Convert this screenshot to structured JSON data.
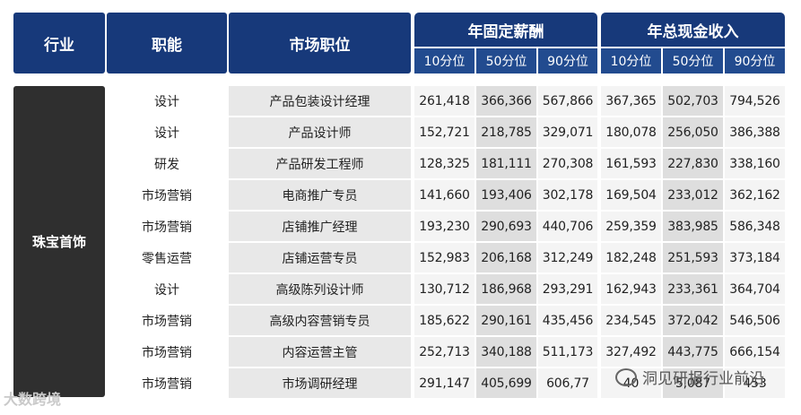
{
  "header": {
    "industry": "行业",
    "function": "职能",
    "position": "市场职位",
    "fixed_salary": "年固定薪酬",
    "total_cash": "年总现金收入",
    "p10": "10分位",
    "p50": "50分位",
    "p90": "90分位"
  },
  "industry": "珠宝首饰",
  "rows": [
    {
      "func": "设计",
      "pos": "产品包装设计经理",
      "f10": "261,418",
      "f50": "366,366",
      "f90": "567,866",
      "t10": "367,365",
      "t50": "502,703",
      "t90": "794,526"
    },
    {
      "func": "设计",
      "pos": "产品设计师",
      "f10": "152,721",
      "f50": "218,785",
      "f90": "329,071",
      "t10": "180,078",
      "t50": "256,050",
      "t90": "386,388"
    },
    {
      "func": "研发",
      "pos": "产品研发工程师",
      "f10": "128,325",
      "f50": "181,111",
      "f90": "270,308",
      "t10": "161,593",
      "t50": "227,830",
      "t90": "338,160"
    },
    {
      "func": "市场营销",
      "pos": "电商推广专员",
      "f10": "141,660",
      "f50": "193,406",
      "f90": "302,178",
      "t10": "169,504",
      "t50": "233,012",
      "t90": "362,162"
    },
    {
      "func": "市场营销",
      "pos": "店铺推广经理",
      "f10": "193,230",
      "f50": "290,693",
      "f90": "440,706",
      "t10": "259,359",
      "t50": "383,985",
      "t90": "586,348"
    },
    {
      "func": "零售运营",
      "pos": "店铺运营专员",
      "f10": "152,983",
      "f50": "206,168",
      "f90": "312,249",
      "t10": "182,248",
      "t50": "251,593",
      "t90": "373,184"
    },
    {
      "func": "设计",
      "pos": "高级陈列设计师",
      "f10": "130,712",
      "f50": "186,968",
      "f90": "293,291",
      "t10": "162,943",
      "t50": "233,361",
      "t90": "364,704"
    },
    {
      "func": "市场营销",
      "pos": "高级内容营销专员",
      "f10": "185,622",
      "f50": "290,161",
      "f90": "435,456",
      "t10": "234,545",
      "t50": "372,042",
      "t90": "546,506"
    },
    {
      "func": "市场营销",
      "pos": "内容运营主管",
      "f10": "252,713",
      "f50": "340,188",
      "f90": "511,173",
      "t10": "327,492",
      "t50": "443,775",
      "t90": "666,154"
    },
    {
      "func": "市场营销",
      "pos": "市场调研经理",
      "f10": "291,147",
      "f50": "405,699",
      "f90": "606,77",
      "t10": "40",
      "t50": "5,087",
      "t90": "453"
    }
  ],
  "watermark_left": "大数跨境",
  "watermark_right": "洞见研报行业前沿"
}
